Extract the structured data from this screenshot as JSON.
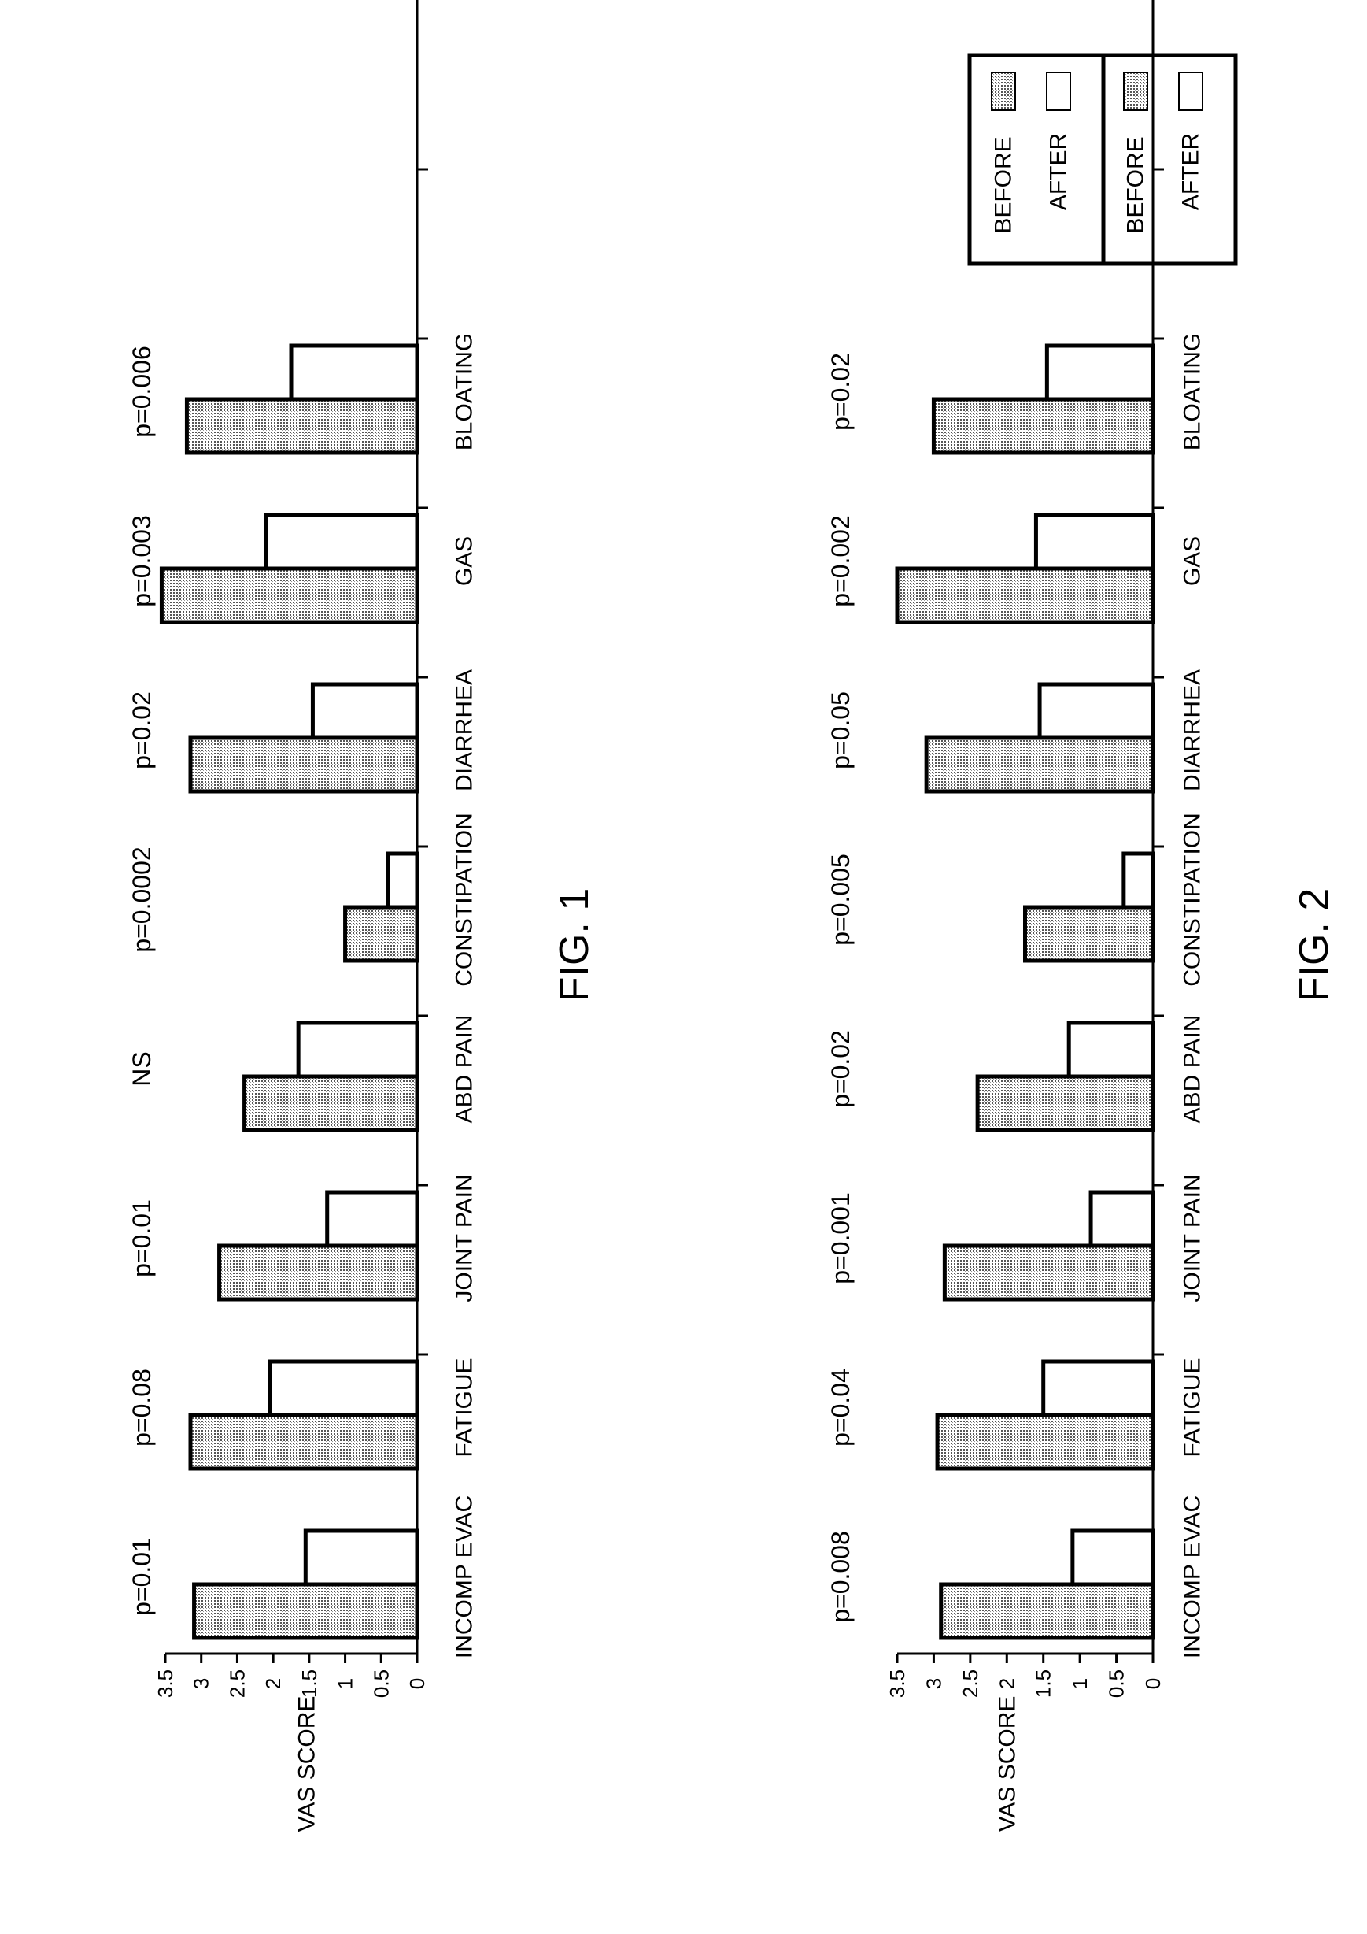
{
  "chart_data": [
    {
      "type": "bar",
      "title": "FIG. 1",
      "ylabel": "VAS SCORE",
      "xlabel": "",
      "ylim": [
        0,
        3.5
      ],
      "yticks": [
        "0",
        "0.5",
        "1",
        "1.5",
        "2",
        "2.5",
        "3",
        "3.5"
      ],
      "categories": [
        "BLOATING",
        "GAS",
        "DIARRHEA",
        "CONSTIPATION",
        "ABD PAIN",
        "JOINT PAIN",
        "FATIGUE",
        "INCOMP EVAC"
      ],
      "series": [
        {
          "name": "BEFORE",
          "values": [
            3.2,
            3.55,
            3.15,
            1.0,
            2.4,
            2.75,
            3.15,
            3.1
          ]
        },
        {
          "name": "AFTER",
          "values": [
            1.75,
            2.1,
            1.45,
            0.4,
            1.65,
            1.25,
            2.05,
            1.55
          ]
        }
      ],
      "annotations": [
        "p=0.006",
        "p=0.003",
        "p=0.02",
        "p=0.0002",
        "NS",
        "p=0.01",
        "p=0.08",
        "p=0.01"
      ],
      "legend": {
        "position": "top-right",
        "before_label": "BEFORE",
        "after_label": "AFTER"
      }
    },
    {
      "type": "bar",
      "title": "FIG. 2",
      "ylabel": "VAS SCORE",
      "xlabel": "",
      "ylim": [
        0,
        3.5
      ],
      "yticks": [
        "0",
        "0.5",
        "1",
        "1.5",
        "2",
        "2.5",
        "3",
        "3.5"
      ],
      "categories": [
        "BLOATING",
        "GAS",
        "DIARRHEA",
        "CONSTIPATION",
        "ABD PAIN",
        "JOINT PAIN",
        "FATIGUE",
        "INCOMP EVAC"
      ],
      "series": [
        {
          "name": "BEFORE",
          "values": [
            3.0,
            3.5,
            3.1,
            1.75,
            2.4,
            2.85,
            2.95,
            2.9
          ]
        },
        {
          "name": "AFTER",
          "values": [
            1.45,
            1.6,
            1.55,
            0.4,
            1.15,
            0.85,
            1.5,
            1.1
          ]
        }
      ],
      "annotations": [
        "p=0.02",
        "p=0.002",
        "p=0.05",
        "p=0.005",
        "p=0.02",
        "p=0.001",
        "p=0.04",
        "p=0.008"
      ],
      "legend": {
        "position": "top-right",
        "before_label": "BEFORE",
        "after_label": "AFTER"
      }
    }
  ],
  "colors": {
    "ink": "#000000",
    "before_fill": "#d2d2d2",
    "after_fill": "#ffffff",
    "background": "#ffffff"
  }
}
